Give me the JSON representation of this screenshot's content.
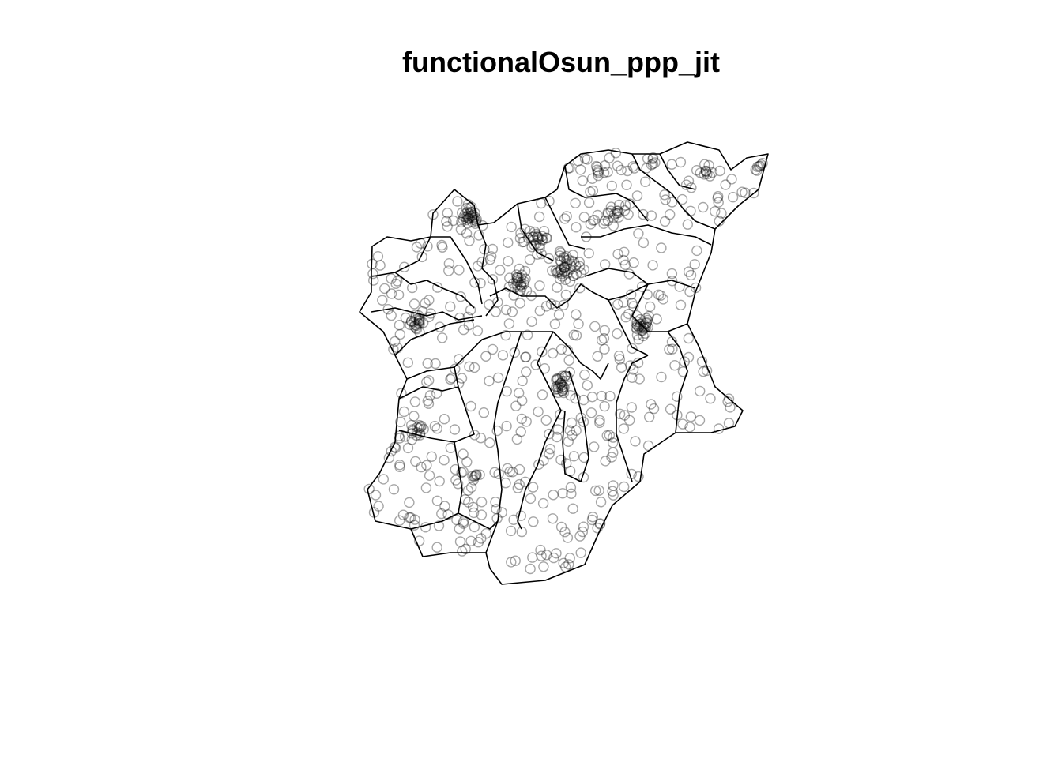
{
  "title": "functionalOsun_ppp_jit"
}
